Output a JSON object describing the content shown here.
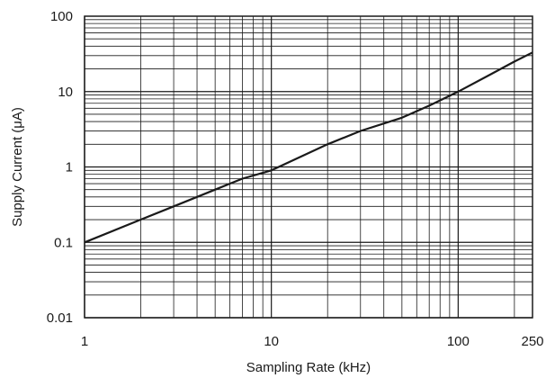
{
  "chart_data": {
    "type": "line",
    "xlabel": "Sampling Rate (kHz)",
    "ylabel": "Supply Current (μA)",
    "x_scale": "log",
    "y_scale": "log",
    "xlim": [
      1,
      250
    ],
    "ylim": [
      0.01,
      100
    ],
    "grid": true,
    "x_ticks": [
      {
        "value": 1,
        "label": "1"
      },
      {
        "value": 10,
        "label": "10"
      },
      {
        "value": 100,
        "label": "100"
      },
      {
        "value": 250,
        "label": "250"
      }
    ],
    "y_ticks": [
      {
        "value": 0.01,
        "label": "0.01"
      },
      {
        "value": 0.1,
        "label": "0.1"
      },
      {
        "value": 1,
        "label": "1"
      },
      {
        "value": 10,
        "label": "10"
      },
      {
        "value": 100,
        "label": "100"
      }
    ],
    "series": [
      {
        "x": [
          1,
          2,
          3,
          5,
          7,
          10,
          20,
          30,
          50,
          70,
          100,
          150,
          200,
          250
        ],
        "y": [
          0.1,
          0.2,
          0.3,
          0.5,
          0.7,
          0.9,
          2,
          3,
          4.5,
          6.5,
          10,
          17,
          25,
          33
        ]
      }
    ]
  }
}
